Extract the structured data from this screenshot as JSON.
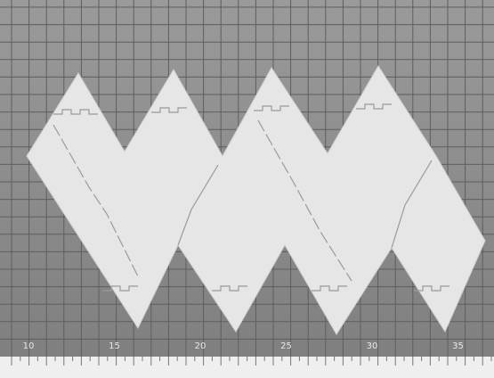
{
  "ruler": {
    "labels": [
      "10",
      "15",
      "20",
      "25",
      "30",
      "35"
    ]
  }
}
